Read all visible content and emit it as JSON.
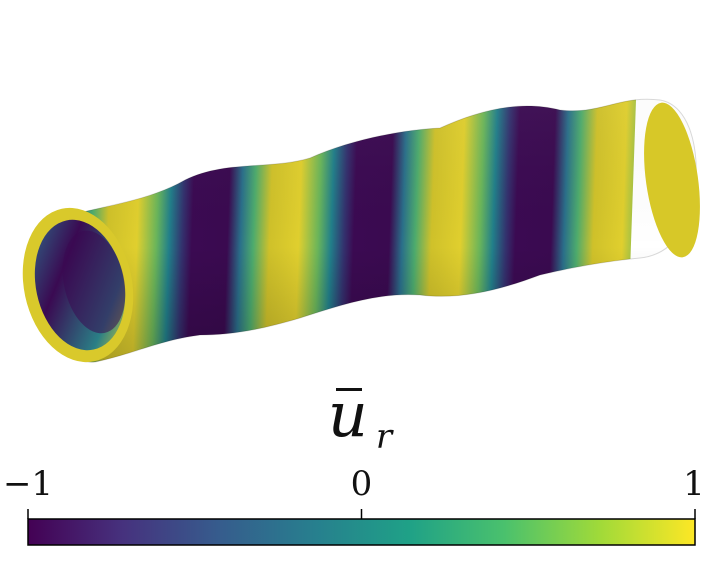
{
  "colorbar": {
    "symbol": "u",
    "subscript": "r",
    "ticks": [
      {
        "value": -1,
        "label": "−1"
      },
      {
        "value": 0,
        "label": "0"
      },
      {
        "value": 1,
        "label": "1"
      }
    ],
    "range": [
      -1,
      1
    ],
    "colormap": "viridis",
    "colors": [
      "#440154",
      "#46327e",
      "#365c8d",
      "#277f8e",
      "#1fa187",
      "#4ac16d",
      "#a0da39",
      "#fde725"
    ]
  },
  "surface": {
    "shape": "helical-tube",
    "stripe_colors": {
      "low": "#3a0a52",
      "high": "#d7c828"
    }
  }
}
